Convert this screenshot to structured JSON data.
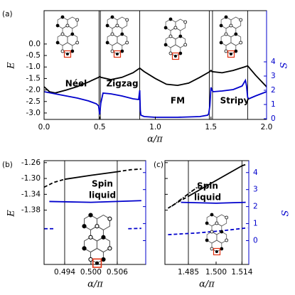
{
  "chart_data": [
    {
      "type": "line",
      "panel_label": "(a)",
      "xlabel": "α/π",
      "ylabel": "E",
      "y2label": "S",
      "xlim": [
        0,
        2
      ],
      "xticks": [
        {
          "value": 0,
          "label": "0.0"
        },
        {
          "value": 0.5,
          "label": "0.5"
        },
        {
          "value": 1,
          "label": "1.0"
        },
        {
          "value": 1.5,
          "label": "1.5"
        },
        {
          "value": 2,
          "label": "2.0"
        }
      ],
      "ylim": [
        -3.28,
        1.45
      ],
      "yticks": [
        {
          "value": 0,
          "label": "0.0"
        },
        {
          "value": -0.5,
          "label": "-0.5"
        },
        {
          "value": -1,
          "label": "-1.0"
        },
        {
          "value": -1.5,
          "label": "-1.5"
        },
        {
          "value": -2,
          "label": "-2.0"
        },
        {
          "value": -2.5,
          "label": "-2.5"
        },
        {
          "value": -3,
          "label": "-3.0"
        }
      ],
      "y2lim": [
        -0.05,
        7.6
      ],
      "y2ticks": [
        0,
        1,
        2,
        3,
        4
      ],
      "y2color": "#0000cc",
      "show_ytick_labels": true,
      "show_y2tick_labels": true,
      "vlines": [
        0.494,
        0.506,
        0.86,
        1.485,
        1.514,
        1.83
      ],
      "annotations": [
        "Néel",
        "Zigzag",
        "FM",
        "Stripy"
      ],
      "series": [
        {
          "color": "#000000",
          "style": "solid",
          "axis": "y",
          "x": [
            0,
            0.05,
            0.1,
            0.2,
            0.3,
            0.4,
            0.49,
            0.5,
            0.51,
            0.6,
            0.7,
            0.8,
            0.86,
            0.9,
            1.0,
            1.1,
            1.2,
            1.3,
            1.4,
            1.49,
            1.5,
            1.51,
            1.6,
            1.7,
            1.8,
            1.83,
            1.9,
            2.0
          ],
          "values": [
            -1.86,
            -2.08,
            -2.13,
            -2.0,
            -1.85,
            -1.65,
            -1.45,
            -1.42,
            -1.45,
            -1.55,
            -1.45,
            -1.25,
            -1.05,
            -1.2,
            -1.5,
            -1.75,
            -1.8,
            -1.7,
            -1.45,
            -1.2,
            -1.15,
            -1.2,
            -1.25,
            -1.15,
            -1.0,
            -0.95,
            -1.35,
            -1.86
          ]
        },
        {
          "color": "#0000cc",
          "style": "solid",
          "axis": "y2",
          "x": [
            0,
            0.1,
            0.2,
            0.3,
            0.4,
            0.47,
            0.49,
            0.5,
            0.51,
            0.53,
            0.6,
            0.7,
            0.8,
            0.85,
            0.86,
            0.865,
            0.87,
            0.9,
            1.0,
            1.2,
            1.4,
            1.47,
            1.48,
            1.49,
            1.5,
            1.51,
            1.52,
            1.6,
            1.7,
            1.78,
            1.81,
            1.82,
            1.83,
            1.84,
            1.9,
            2.0
          ],
          "values": [
            1.9,
            1.75,
            1.6,
            1.45,
            1.25,
            1.05,
            0.9,
            0.3,
            1.1,
            1.8,
            1.75,
            1.6,
            1.4,
            1.35,
            2.0,
            0.6,
            0.25,
            0.15,
            0.1,
            0.1,
            0.15,
            0.25,
            0.35,
            0.9,
            2.2,
            2.0,
            1.9,
            1.95,
            2.05,
            2.3,
            2.7,
            2.3,
            1.5,
            1.4,
            1.6,
            1.9
          ]
        }
      ]
    },
    {
      "type": "line",
      "panel_label": "(b)",
      "xlabel": "α/π",
      "ylabel": "E",
      "xlim": [
        0.4893,
        0.5125
      ],
      "xticks": [
        {
          "value": 0.494,
          "label": "0.494"
        },
        {
          "value": 0.5,
          "label": "0.500"
        },
        {
          "value": 0.506,
          "label": "0.506"
        }
      ],
      "ylim": [
        -1.517,
        -1.255
      ],
      "yticks": [
        -1.26,
        {
          "value": -1.3,
          "label": "-1.30"
        },
        -1.34,
        -1.38
      ],
      "y2lim": [
        -1.4,
        4.7
      ],
      "y2ticks": [
        0,
        1,
        2,
        3,
        4
      ],
      "y2color": "#0000cc",
      "show_ytick_labels": true,
      "show_y2tick_labels": false,
      "vlines": [
        0.494,
        0.506
      ],
      "annotations": [
        "Spin",
        "liquid"
      ],
      "series": [
        {
          "color": "#000000",
          "style": "dashed",
          "axis": "y",
          "x": [
            0.4893,
            0.4915,
            0.494
          ],
          "values": [
            -1.322,
            -1.31,
            -1.302
          ]
        },
        {
          "color": "#000000",
          "style": "solid",
          "axis": "y",
          "x": [
            0.494,
            0.5,
            0.506
          ],
          "values": [
            -1.302,
            -1.292,
            -1.283
          ]
        },
        {
          "color": "#000000",
          "style": "dashed",
          "axis": "y",
          "x": [
            0.506,
            0.509,
            0.5115
          ],
          "values": [
            -1.283,
            -1.278,
            -1.276
          ]
        },
        {
          "color": "#0000cc",
          "style": "solid",
          "axis": "y2",
          "x": [
            0.4905,
            0.5,
            0.5115
          ],
          "values": [
            2.3,
            2.25,
            2.35
          ]
        },
        {
          "color": "#0000cc",
          "style": "dashed",
          "axis": "y2",
          "x": [
            0.4893,
            0.4915
          ],
          "values": [
            0.7,
            0.7
          ]
        },
        {
          "color": "#0000cc",
          "style": "dashed",
          "axis": "y2",
          "x": [
            0.5085,
            0.5115
          ],
          "values": [
            0.7,
            0.72
          ]
        }
      ]
    },
    {
      "type": "line",
      "panel_label": "(c)",
      "xlabel": "α/π",
      "y2label": "S",
      "xlim": [
        1.4723,
        1.5177
      ],
      "xticks": [
        {
          "value": 1.485,
          "label": "1.485"
        },
        {
          "value": 1.5,
          "label": "1.500"
        },
        {
          "value": 1.514,
          "label": "1.514"
        }
      ],
      "ylim": [
        -1.517,
        -1.255
      ],
      "yticks": [
        -1.26,
        -1.3,
        -1.34,
        -1.38
      ],
      "y2lim": [
        -1.4,
        4.7
      ],
      "y2ticks": [
        0,
        1,
        2,
        3,
        4
      ],
      "y2color": "#0000cc",
      "show_ytick_labels": false,
      "show_y2tick_labels": true,
      "vlines": [
        1.485,
        1.514
      ],
      "annotations": [
        "Spin",
        "liquid"
      ],
      "series": [
        {
          "color": "#000000",
          "style": "dashed",
          "axis": "y",
          "x": [
            1.474,
            1.48,
            1.485
          ],
          "values": [
            -1.375,
            -1.358,
            -1.345
          ]
        },
        {
          "color": "#000000",
          "style": "solid",
          "axis": "y",
          "x": [
            1.485,
            1.5,
            1.514
          ],
          "values": [
            -1.345,
            -1.305,
            -1.268
          ]
        },
        {
          "color": "#000000",
          "style": "dashed",
          "axis": "y",
          "x": [
            1.514,
            1.5165
          ],
          "values": [
            -1.268,
            -1.264
          ]
        },
        {
          "color": "#000000",
          "style": "dashdot",
          "axis": "y",
          "x": [
            1.476,
            1.491
          ],
          "values": [
            -1.37,
            -1.318
          ]
        },
        {
          "color": "#0000cc",
          "style": "solid",
          "axis": "y2",
          "x": [
            1.481,
            1.5,
            1.516
          ],
          "values": [
            2.25,
            2.2,
            2.25
          ]
        },
        {
          "color": "#0000cc",
          "style": "dashed",
          "axis": "y2",
          "x": [
            1.474,
            1.49,
            1.505,
            1.517
          ],
          "values": [
            0.35,
            0.45,
            0.6,
            0.75
          ]
        }
      ]
    }
  ]
}
